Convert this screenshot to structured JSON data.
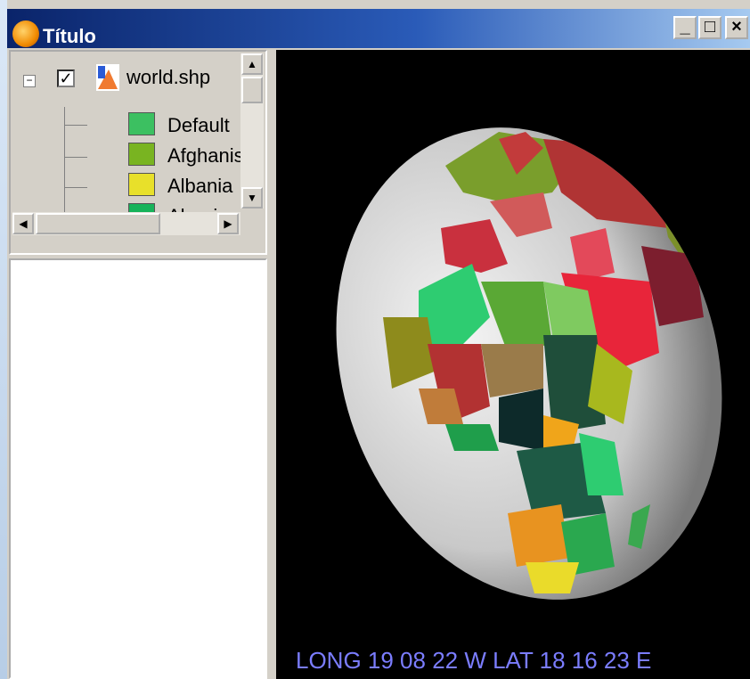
{
  "window": {
    "title": "Título",
    "controls": [
      "_",
      "□",
      "×"
    ]
  },
  "legend": {
    "layer": {
      "name": "world.shp",
      "checked": true,
      "expander": "−"
    },
    "items": [
      {
        "label": "Default",
        "color": "#3cc061"
      },
      {
        "label": "Afghanis",
        "color": "#79b421"
      },
      {
        "label": "Albania",
        "color": "#e8e02a"
      },
      {
        "label": "Algeria",
        "color": "#17b35a"
      }
    ]
  },
  "view": {
    "coordinates": "LONG 19 08 22 W LAT  18 16 23 E"
  }
}
